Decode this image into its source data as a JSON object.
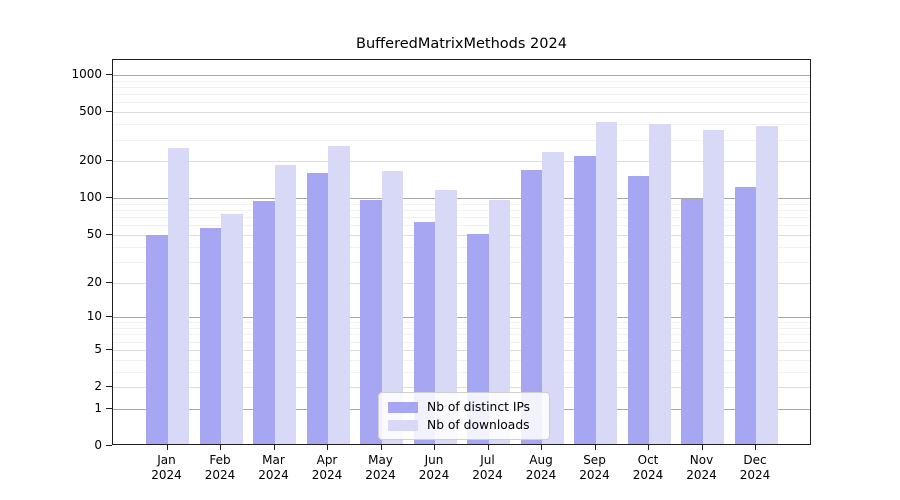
{
  "title": "BufferedMatrixMethods 2024",
  "chart_data": {
    "type": "bar",
    "title": "BufferedMatrixMethods 2024",
    "xlabel": "",
    "ylabel": "",
    "year": "2024",
    "categories": [
      "Jan",
      "Feb",
      "Mar",
      "Apr",
      "May",
      "Jun",
      "Jul",
      "Aug",
      "Sep",
      "Oct",
      "Nov",
      "Dec"
    ],
    "series": [
      {
        "name": "Nb of distinct IPs",
        "color": "#a6a6f2",
        "values": [
          48,
          55,
          92,
          156,
          93,
          61,
          49,
          163,
          213,
          145,
          95,
          119
        ]
      },
      {
        "name": "Nb of downloads",
        "color": "#d8d8f7",
        "values": [
          248,
          71,
          180,
          255,
          162,
          112,
          93,
          227,
          403,
          388,
          345,
          372
        ]
      }
    ],
    "yticks": [
      0,
      1,
      2,
      5,
      10,
      20,
      50,
      100,
      200,
      500,
      1000
    ],
    "yscale": "log(value+1)",
    "ylim": [
      0,
      1320
    ],
    "grid": true,
    "legend_position": "lower center"
  }
}
